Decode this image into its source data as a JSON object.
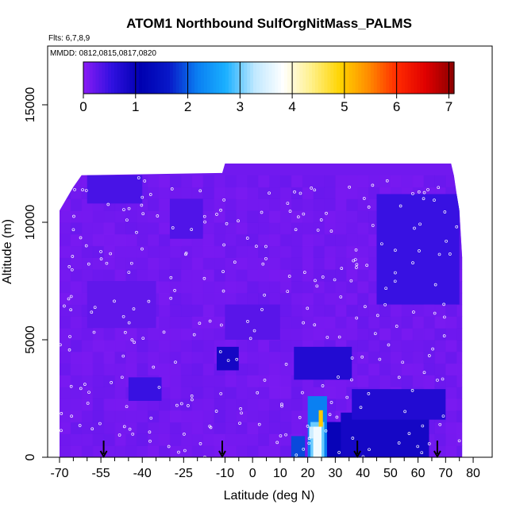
{
  "chart_data": {
    "type": "heatmap",
    "title": "ATOM1 Northbound SulfOrgNitMass_PALMS",
    "annotations": [
      "Flts: 6,7,8,9",
      "MMDD: 0812,0815,0817,0820"
    ],
    "xlabel": "Latitude (deg N)",
    "ylabel": "Altitude (m)",
    "xlim": [
      -70,
      82
    ],
    "ylim": [
      0,
      17500
    ],
    "x_ticks": [
      -70,
      -55,
      -40,
      -25,
      -10,
      0,
      10,
      20,
      30,
      40,
      50,
      60,
      70,
      80
    ],
    "x_tick_labels": [
      "-70",
      "-55",
      "-40",
      "-25",
      "-10",
      "0",
      "10",
      "20",
      "30",
      "40",
      "50",
      "60",
      "70",
      "80"
    ],
    "x_minor_ticks": [
      -65,
      -60,
      -50,
      -45,
      -35,
      -30,
      -20,
      -15,
      -5,
      5,
      15,
      25,
      35,
      45,
      55,
      65,
      75
    ],
    "y_ticks": [
      0,
      5000,
      10000,
      15000
    ],
    "y_tick_labels": [
      "0",
      "5000",
      "10000",
      "15000"
    ],
    "colorbar": {
      "range": [
        0,
        7.1
      ],
      "ticks": [
        0,
        1,
        2,
        3,
        4,
        5,
        6,
        7
      ],
      "tick_labels": [
        "0",
        "1",
        "2",
        "3",
        "4",
        "5",
        "6",
        "7"
      ],
      "colors": [
        "#8a1cf5",
        "#3010e0",
        "#0000b0",
        "#0818c8",
        "#0a7ff2",
        "#1ab0ff",
        "#bfe8ff",
        "#ffffff",
        "#fff08a",
        "#ffd400",
        "#ff8c00",
        "#ff2a00",
        "#e00000",
        "#8b0000"
      ]
    },
    "field_upper_envelope": [
      [
        -70,
        10500
      ],
      [
        -67.5,
        11000
      ],
      [
        -65,
        11500
      ],
      [
        -62,
        12000
      ],
      [
        -11,
        12100
      ],
      [
        -10,
        12500
      ],
      [
        72,
        12500
      ],
      [
        73,
        12000
      ],
      [
        74,
        11200
      ],
      [
        75,
        10500
      ],
      [
        76,
        8500
      ],
      [
        76,
        4500
      ],
      [
        76,
        0
      ]
    ],
    "background_value": 0.15,
    "features": [
      {
        "x": [
          20,
          27
        ],
        "y": [
          0,
          2600
        ],
        "value": 2.2
      },
      {
        "x": [
          21,
          26
        ],
        "y": [
          0,
          1500
        ],
        "value": 3.0
      },
      {
        "x": [
          22,
          25
        ],
        "y": [
          0,
          1300
        ],
        "value": 3.7
      },
      {
        "x": [
          24,
          25.5
        ],
        "y": [
          1300,
          2000
        ],
        "value": 5.0
      },
      {
        "x": [
          20.5,
          22
        ],
        "y": [
          800,
          1300
        ],
        "value": 3.4
      },
      {
        "x": [
          14,
          19
        ],
        "y": [
          0,
          900
        ],
        "value": 1.9
      },
      {
        "x": [
          27,
          33
        ],
        "y": [
          0,
          1500
        ],
        "value": 1.0
      },
      {
        "x": [
          32,
          64
        ],
        "y": [
          0,
          1900
        ],
        "value": 0.85
      },
      {
        "x": [
          36,
          70
        ],
        "y": [
          1600,
          2900
        ],
        "value": 0.7
      },
      {
        "x": [
          15,
          36
        ],
        "y": [
          3300,
          4700
        ],
        "value": 0.7
      },
      {
        "x": [
          -13,
          -5
        ],
        "y": [
          3700,
          4700
        ],
        "value": 0.85
      },
      {
        "x": [
          -45,
          -33
        ],
        "y": [
          2400,
          3400
        ],
        "value": 0.5
      },
      {
        "x": [
          45,
          75
        ],
        "y": [
          6500,
          11200
        ],
        "value": 0.5
      },
      {
        "x": [
          -30,
          -18
        ],
        "y": [
          9300,
          11000
        ],
        "value": 0.35
      },
      {
        "x": [
          -60,
          -40
        ],
        "y": [
          10800,
          12000
        ],
        "value": 0.4
      },
      {
        "x": [
          -60,
          -35
        ],
        "y": [
          5500,
          7500
        ],
        "value": 0.25
      },
      {
        "x": [
          -10,
          10
        ],
        "y": [
          5000,
          6500
        ],
        "value": 0.3
      }
    ],
    "markers": [
      {
        "x": -54,
        "y": 0
      },
      {
        "x": -11,
        "y": 0
      },
      {
        "x": 38,
        "y": 0
      },
      {
        "x": 67,
        "y": 0
      }
    ]
  }
}
